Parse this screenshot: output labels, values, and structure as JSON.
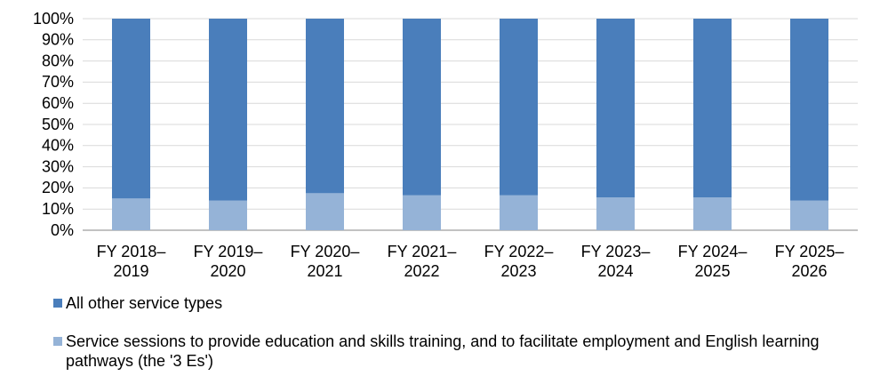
{
  "chart_data": {
    "type": "stacked_bar",
    "categories": [
      "FY 2018–2019",
      "FY 2019–2020",
      "FY 2020–2021",
      "FY 2021–2022",
      "FY 2022–2023",
      "FY 2023–2024",
      "FY 2024–2025",
      "FY 2025–2026"
    ],
    "series": [
      {
        "name": "Service sessions to provide education and skills training, and to facilitate employment and English learning pathways (the '3 Es')",
        "color": "#95b3d7",
        "values": [
          15,
          14,
          17.5,
          16.5,
          16.5,
          15.5,
          15.5,
          14
        ]
      },
      {
        "name": "All other service types",
        "color": "#4a7ebb",
        "values": [
          85,
          86,
          82.5,
          83.5,
          83.5,
          84.5,
          84.5,
          86
        ]
      }
    ],
    "ylim": [
      0,
      100
    ],
    "yticks": [
      {
        "value": 0,
        "label": "0%"
      },
      {
        "value": 10,
        "label": "10%"
      },
      {
        "value": 20,
        "label": "20%"
      },
      {
        "value": 30,
        "label": "30%"
      },
      {
        "value": 40,
        "label": "40%"
      },
      {
        "value": 50,
        "label": "50%"
      },
      {
        "value": 60,
        "label": "60%"
      },
      {
        "value": 70,
        "label": "70%"
      },
      {
        "value": 80,
        "label": "80%"
      },
      {
        "value": 90,
        "label": "90%"
      },
      {
        "value": 100,
        "label": "100%"
      }
    ],
    "grid": true
  }
}
